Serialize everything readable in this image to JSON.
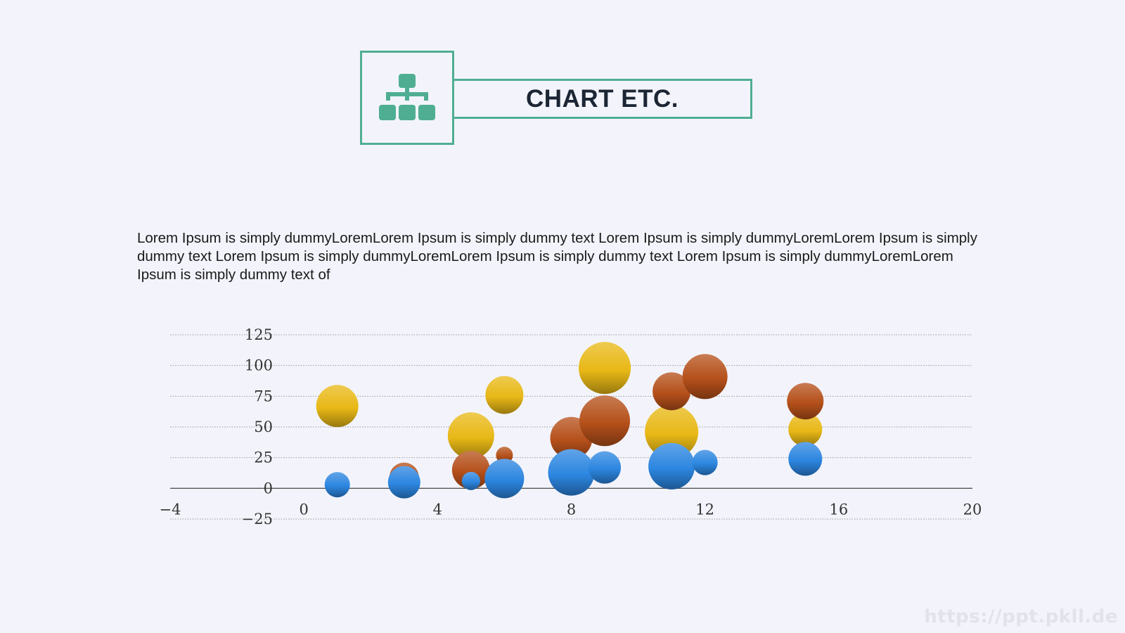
{
  "header": {
    "title": "CHART ETC.",
    "icon": "org-chart-icon",
    "accent_color": "#4fae92"
  },
  "body": {
    "paragraph": "Lorem Ipsum is simply dummyLoremLorem Ipsum is simply dummy text Lorem Ipsum is simply dummyLoremLorem Ipsum is simply dummy text Lorem Ipsum is simply dummyLoremLorem Ipsum is simply dummy text Lorem Ipsum is simply dummyLoremLorem Ipsum is simply dummy text of"
  },
  "watermark": "https://ppt.pkll.de",
  "chart_data": {
    "type": "bubble",
    "x_ticks": [
      "-4",
      "0",
      "4",
      "8",
      "12",
      "16",
      "20"
    ],
    "y_ticks": [
      "-25",
      "0",
      "25",
      "50",
      "75",
      "100",
      "125"
    ],
    "xlim": [
      -4,
      20
    ],
    "ylim": [
      -25,
      125
    ],
    "grid": true,
    "legend": "none",
    "series": [
      {
        "color": "#e8b816",
        "points": [
          {
            "x": 1,
            "y": 67,
            "size": 30
          },
          {
            "x": 3,
            "y": 12,
            "size": 12
          },
          {
            "x": 5,
            "y": 43,
            "size": 33
          },
          {
            "x": 6,
            "y": 76,
            "size": 27
          },
          {
            "x": 9,
            "y": 98,
            "size": 37
          },
          {
            "x": 11,
            "y": 46,
            "size": 38
          },
          {
            "x": 15,
            "y": 48,
            "size": 24
          }
        ]
      },
      {
        "color": "#b5501a",
        "points": [
          {
            "x": 3,
            "y": 9,
            "size": 21
          },
          {
            "x": 5,
            "y": 15,
            "size": 27
          },
          {
            "x": 6,
            "y": 27,
            "size": 12
          },
          {
            "x": 8,
            "y": 41,
            "size": 30
          },
          {
            "x": 9,
            "y": 55,
            "size": 36
          },
          {
            "x": 11,
            "y": 79,
            "size": 27
          },
          {
            "x": 12,
            "y": 91,
            "size": 32
          },
          {
            "x": 15,
            "y": 71,
            "size": 26
          }
        ]
      },
      {
        "color": "#2c86e0",
        "points": [
          {
            "x": 1,
            "y": 3,
            "size": 18
          },
          {
            "x": 3,
            "y": 5,
            "size": 23
          },
          {
            "x": 5,
            "y": 6,
            "size": 13
          },
          {
            "x": 6,
            "y": 8,
            "size": 28
          },
          {
            "x": 8,
            "y": 13,
            "size": 33
          },
          {
            "x": 9,
            "y": 17,
            "size": 23
          },
          {
            "x": 11,
            "y": 18,
            "size": 33
          },
          {
            "x": 12,
            "y": 21,
            "size": 18
          },
          {
            "x": 15,
            "y": 24,
            "size": 24
          }
        ]
      }
    ]
  }
}
